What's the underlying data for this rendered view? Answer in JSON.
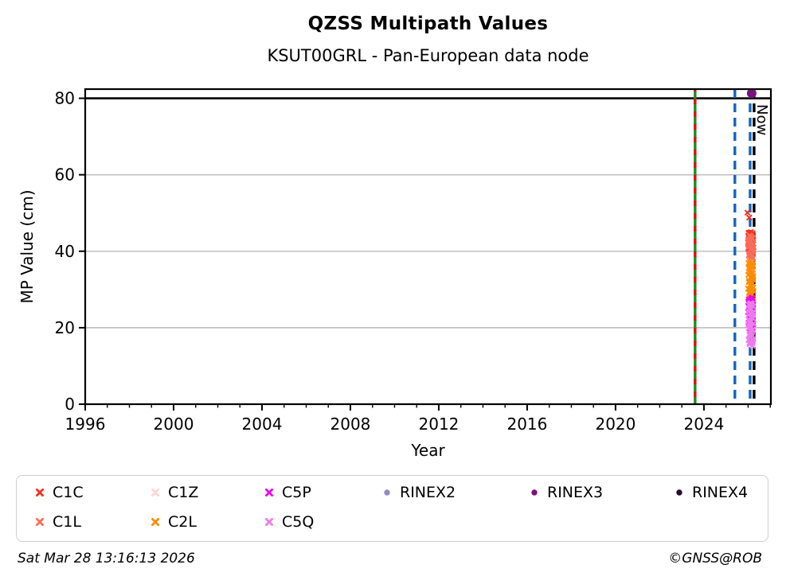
{
  "header": {
    "title": "QZSS Multipath Values",
    "subtitle": "KSUT00GRL - Pan-European data node"
  },
  "footer": {
    "timestamp": "Sat Mar 28 13:16:13 2026",
    "copyright": "©GNSS@ROB"
  },
  "colors": {
    "grid": "#b9b9b9",
    "axis": "#000000",
    "threshold_line": "#000000",
    "event_green": "#1e8b1e",
    "event_red_overlay": "#dd1111",
    "event_blue": "#1565c0",
    "now_black": "#000000"
  },
  "chart_data": {
    "type": "scatter",
    "title": "QZSS Multipath Values",
    "subtitle": "KSUT00GRL - Pan-European data node",
    "xlabel": "Year",
    "ylabel": "MP Value (cm)",
    "xlim": [
      1996,
      2027.03
    ],
    "ylim": [
      0,
      82.4
    ],
    "x_ticks": [
      1996,
      2000,
      2004,
      2008,
      2012,
      2016,
      2020,
      2024
    ],
    "x_minor_tick_step": 1,
    "x_minor_tick_range": [
      1997,
      2027
    ],
    "y_ticks": [
      0,
      20,
      40,
      60,
      80
    ],
    "grid_horizontal": [
      20,
      40,
      60
    ],
    "grid_on": true,
    "legend_position": "below",
    "hline": {
      "y": 80,
      "color": "#000000",
      "style": "solid"
    },
    "vlines": [
      {
        "x": 2023.6,
        "color": "#1e8b1e",
        "style": "solid",
        "overlay_color": "#dd1111",
        "overlay_style": "dashed",
        "name": "station-event-line"
      },
      {
        "x": 2025.4,
        "color": "#1565c0",
        "style": "dashed",
        "name": "data-event-line-1"
      },
      {
        "x": 2026.09,
        "color": "#1565c0",
        "style": "dashed",
        "name": "data-event-line-2"
      },
      {
        "x": 2026.27,
        "color": "#000000",
        "style": "dashed",
        "label": "Now",
        "name": "now-line"
      }
    ],
    "now_label": "Now",
    "series": [
      {
        "name": "C1C",
        "marker": "x",
        "color": "#ee3322",
        "points": [
          [
            2025.97,
            50.1
          ],
          [
            2026.05,
            48.8
          ],
          [
            2026.0,
            42.3
          ],
          [
            2026.01,
            44.1
          ],
          [
            2026.02,
            40.6
          ],
          [
            2026.03,
            43.2
          ],
          [
            2026.04,
            41.8
          ],
          [
            2026.05,
            44.6
          ],
          [
            2026.06,
            39.9
          ],
          [
            2026.07,
            42.8
          ],
          [
            2026.08,
            44.9
          ],
          [
            2026.09,
            41.2
          ],
          [
            2026.1,
            43.6
          ],
          [
            2026.11,
            40.1
          ],
          [
            2026.12,
            42.1
          ],
          [
            2026.13,
            45.0
          ],
          [
            2026.14,
            43.9
          ],
          [
            2026.15,
            40.8
          ],
          [
            2026.16,
            42.6
          ],
          [
            2026.17,
            39.4
          ],
          [
            2026.18,
            44.3
          ],
          [
            2026.19,
            41.5
          ],
          [
            2026.2,
            43.0
          ],
          [
            2026.21,
            44.7
          ],
          [
            2026.22,
            40.3
          ],
          [
            2026.23,
            42.9
          ],
          [
            2026.24,
            41.0
          ],
          [
            2026.06,
            43.4
          ],
          [
            2026.1,
            39.7
          ],
          [
            2026.14,
            44.4
          ],
          [
            2026.18,
            40.5
          ],
          [
            2026.22,
            43.3
          ],
          [
            2026.02,
            44.8
          ],
          [
            2026.12,
            38.9
          ],
          [
            2026.2,
            41.9
          ],
          [
            2026.16,
            44.0
          ]
        ]
      },
      {
        "name": "C1L",
        "marker": "x",
        "color": "#fb6c5c",
        "points": [
          [
            2026.0,
            40.9
          ],
          [
            2026.02,
            43.1
          ],
          [
            2026.04,
            38.8
          ],
          [
            2026.06,
            41.6
          ],
          [
            2026.08,
            43.8
          ],
          [
            2026.1,
            39.5
          ],
          [
            2026.12,
            42.4
          ],
          [
            2026.14,
            38.4
          ],
          [
            2026.16,
            41.1
          ],
          [
            2026.18,
            43.5
          ],
          [
            2026.2,
            39.9
          ],
          [
            2026.22,
            42.0
          ],
          [
            2026.24,
            40.2
          ],
          [
            2026.01,
            42.7
          ],
          [
            2026.05,
            39.2
          ],
          [
            2026.09,
            41.9
          ],
          [
            2026.13,
            43.9
          ],
          [
            2026.17,
            38.6
          ],
          [
            2026.21,
            40.7
          ],
          [
            2026.03,
            42.2
          ],
          [
            2026.07,
            44.1
          ],
          [
            2026.11,
            39.0
          ],
          [
            2026.15,
            41.4
          ],
          [
            2026.19,
            43.3
          ],
          [
            2026.23,
            38.2
          ],
          [
            2026.1,
            40.4
          ]
        ]
      },
      {
        "name": "C1Z",
        "marker": "x",
        "color": "#fbd8d3",
        "points": [
          [
            2026.02,
            35.2
          ],
          [
            2026.05,
            33.8
          ],
          [
            2026.08,
            36.4
          ],
          [
            2026.11,
            34.5
          ],
          [
            2026.14,
            36.8
          ],
          [
            2026.17,
            33.4
          ],
          [
            2026.2,
            35.7
          ],
          [
            2026.23,
            34.1
          ],
          [
            2026.04,
            36.1
          ],
          [
            2026.1,
            33.9
          ],
          [
            2026.16,
            35.4
          ],
          [
            2026.22,
            36.6
          ]
        ]
      },
      {
        "name": "C2L",
        "marker": "x",
        "color": "#ff8c00",
        "points": [
          [
            2026.0,
            30.2
          ],
          [
            2026.01,
            33.8
          ],
          [
            2026.02,
            27.4
          ],
          [
            2026.03,
            35.6
          ],
          [
            2026.04,
            29.1
          ],
          [
            2026.05,
            32.3
          ],
          [
            2026.06,
            36.7
          ],
          [
            2026.07,
            26.5
          ],
          [
            2026.08,
            31.2
          ],
          [
            2026.09,
            34.9
          ],
          [
            2026.1,
            28.3
          ],
          [
            2026.11,
            33.1
          ],
          [
            2026.12,
            36.2
          ],
          [
            2026.13,
            27.9
          ],
          [
            2026.14,
            30.8
          ],
          [
            2026.15,
            34.4
          ],
          [
            2026.16,
            25.9
          ],
          [
            2026.17,
            32.7
          ],
          [
            2026.18,
            35.9
          ],
          [
            2026.19,
            28.8
          ],
          [
            2026.2,
            31.6
          ],
          [
            2026.21,
            34.2
          ],
          [
            2026.22,
            26.9
          ],
          [
            2026.23,
            33.5
          ],
          [
            2026.24,
            29.6
          ],
          [
            2026.02,
            36.9
          ],
          [
            2026.05,
            28.0
          ],
          [
            2026.08,
            35.2
          ],
          [
            2026.11,
            26.2
          ],
          [
            2026.14,
            32.0
          ],
          [
            2026.17,
            37.1
          ],
          [
            2026.2,
            27.1
          ],
          [
            2026.23,
            30.5
          ],
          [
            2026.03,
            31.9
          ],
          [
            2026.07,
            37.3
          ],
          [
            2026.12,
            25.4
          ],
          [
            2026.15,
            29.9
          ],
          [
            2026.19,
            36.0
          ],
          [
            2026.22,
            32.9
          ],
          [
            2026.06,
            29.4
          ],
          [
            2026.1,
            35.8
          ],
          [
            2026.16,
            27.6
          ],
          [
            2026.18,
            30.0
          ],
          [
            2026.21,
            36.4
          ]
        ]
      },
      {
        "name": "C5P",
        "marker": "x",
        "color": "#ee00ee",
        "points": [
          [
            2026.0,
            24.1
          ],
          [
            2026.01,
            26.8
          ],
          [
            2026.02,
            21.3
          ],
          [
            2026.03,
            25.5
          ],
          [
            2026.04,
            19.9
          ],
          [
            2026.05,
            23.4
          ],
          [
            2026.06,
            27.2
          ],
          [
            2026.07,
            20.8
          ],
          [
            2026.08,
            24.7
          ],
          [
            2026.09,
            22.1
          ],
          [
            2026.1,
            26.3
          ],
          [
            2026.11,
            19.6
          ],
          [
            2026.12,
            23.9
          ],
          [
            2026.13,
            27.6
          ],
          [
            2026.14,
            21.7
          ],
          [
            2026.15,
            25.1
          ],
          [
            2026.16,
            20.3
          ],
          [
            2026.17,
            24.4
          ],
          [
            2026.18,
            27.9
          ],
          [
            2026.19,
            22.6
          ],
          [
            2026.2,
            25.8
          ],
          [
            2026.21,
            20.0
          ],
          [
            2026.22,
            23.1
          ],
          [
            2026.23,
            26.1
          ],
          [
            2026.24,
            21.0
          ],
          [
            2026.04,
            27.4
          ],
          [
            2026.09,
            19.8
          ],
          [
            2026.13,
            24.9
          ],
          [
            2026.17,
            21.5
          ],
          [
            2026.21,
            26.6
          ],
          [
            2026.06,
            22.9
          ],
          [
            2026.12,
            27.0
          ],
          [
            2026.16,
            23.6
          ],
          [
            2026.2,
            19.4
          ]
        ]
      },
      {
        "name": "C5Q",
        "marker": "x",
        "color": "#ee7bee",
        "points": [
          [
            2026.0,
            20.6
          ],
          [
            2026.01,
            24.3
          ],
          [
            2026.02,
            16.8
          ],
          [
            2026.03,
            22.1
          ],
          [
            2026.04,
            25.9
          ],
          [
            2026.05,
            18.2
          ],
          [
            2026.06,
            21.4
          ],
          [
            2026.07,
            15.7
          ],
          [
            2026.08,
            23.8
          ],
          [
            2026.09,
            19.1
          ],
          [
            2026.1,
            25.2
          ],
          [
            2026.11,
            16.3
          ],
          [
            2026.12,
            21.9
          ],
          [
            2026.13,
            24.8
          ],
          [
            2026.14,
            17.5
          ],
          [
            2026.15,
            20.2
          ],
          [
            2026.16,
            26.1
          ],
          [
            2026.17,
            18.7
          ],
          [
            2026.18,
            22.6
          ],
          [
            2026.19,
            15.3
          ],
          [
            2026.2,
            24.0
          ],
          [
            2026.21,
            19.5
          ],
          [
            2026.22,
            25.6
          ],
          [
            2026.23,
            17.0
          ],
          [
            2026.24,
            21.1
          ],
          [
            2026.02,
            23.3
          ],
          [
            2026.06,
            16.0
          ],
          [
            2026.1,
            20.9
          ],
          [
            2026.14,
            26.4
          ],
          [
            2026.18,
            18.0
          ],
          [
            2026.22,
            22.4
          ],
          [
            2026.05,
            25.0
          ],
          [
            2026.09,
            17.8
          ],
          [
            2026.13,
            21.6
          ],
          [
            2026.17,
            26.0
          ],
          [
            2026.21,
            16.5
          ],
          [
            2026.03,
            19.9
          ],
          [
            2026.08,
            26.3
          ],
          [
            2026.12,
            18.4
          ],
          [
            2026.16,
            22.9
          ],
          [
            2026.2,
            15.9
          ],
          [
            2026.23,
            23.9
          ]
        ]
      },
      {
        "name": "RINEX2",
        "marker": "circle",
        "color": "#918bc3",
        "points": []
      },
      {
        "name": "RINEX3",
        "marker": "circle",
        "color": "#7c107f",
        "points": [
          [
            2026.16,
            81.3
          ]
        ]
      },
      {
        "name": "RINEX4",
        "marker": "circle",
        "color": "#270b31",
        "points": []
      }
    ]
  },
  "legend": {
    "items": [
      {
        "label": "C1C",
        "color": "#ee3322",
        "marker": "x",
        "col": 0,
        "row": 0
      },
      {
        "label": "C1L",
        "color": "#fb6c5c",
        "marker": "x",
        "col": 0,
        "row": 1
      },
      {
        "label": "C1Z",
        "color": "#fbd8d3",
        "marker": "x",
        "col": 1,
        "row": 0
      },
      {
        "label": "C2L",
        "color": "#ff8c00",
        "marker": "x",
        "col": 1,
        "row": 1
      },
      {
        "label": "C5P",
        "color": "#ee00ee",
        "marker": "x",
        "col": 2,
        "row": 0
      },
      {
        "label": "C5Q",
        "color": "#ee7bee",
        "marker": "x",
        "col": 2,
        "row": 1
      },
      {
        "label": "RINEX2",
        "color": "#918bc3",
        "marker": "circle",
        "col": 3,
        "row": 0
      },
      {
        "label": "RINEX3",
        "color": "#7c107f",
        "marker": "circle",
        "col": 4,
        "row": 0
      },
      {
        "label": "RINEX4",
        "color": "#270b31",
        "marker": "circle",
        "col": 5,
        "row": 0
      }
    ]
  }
}
